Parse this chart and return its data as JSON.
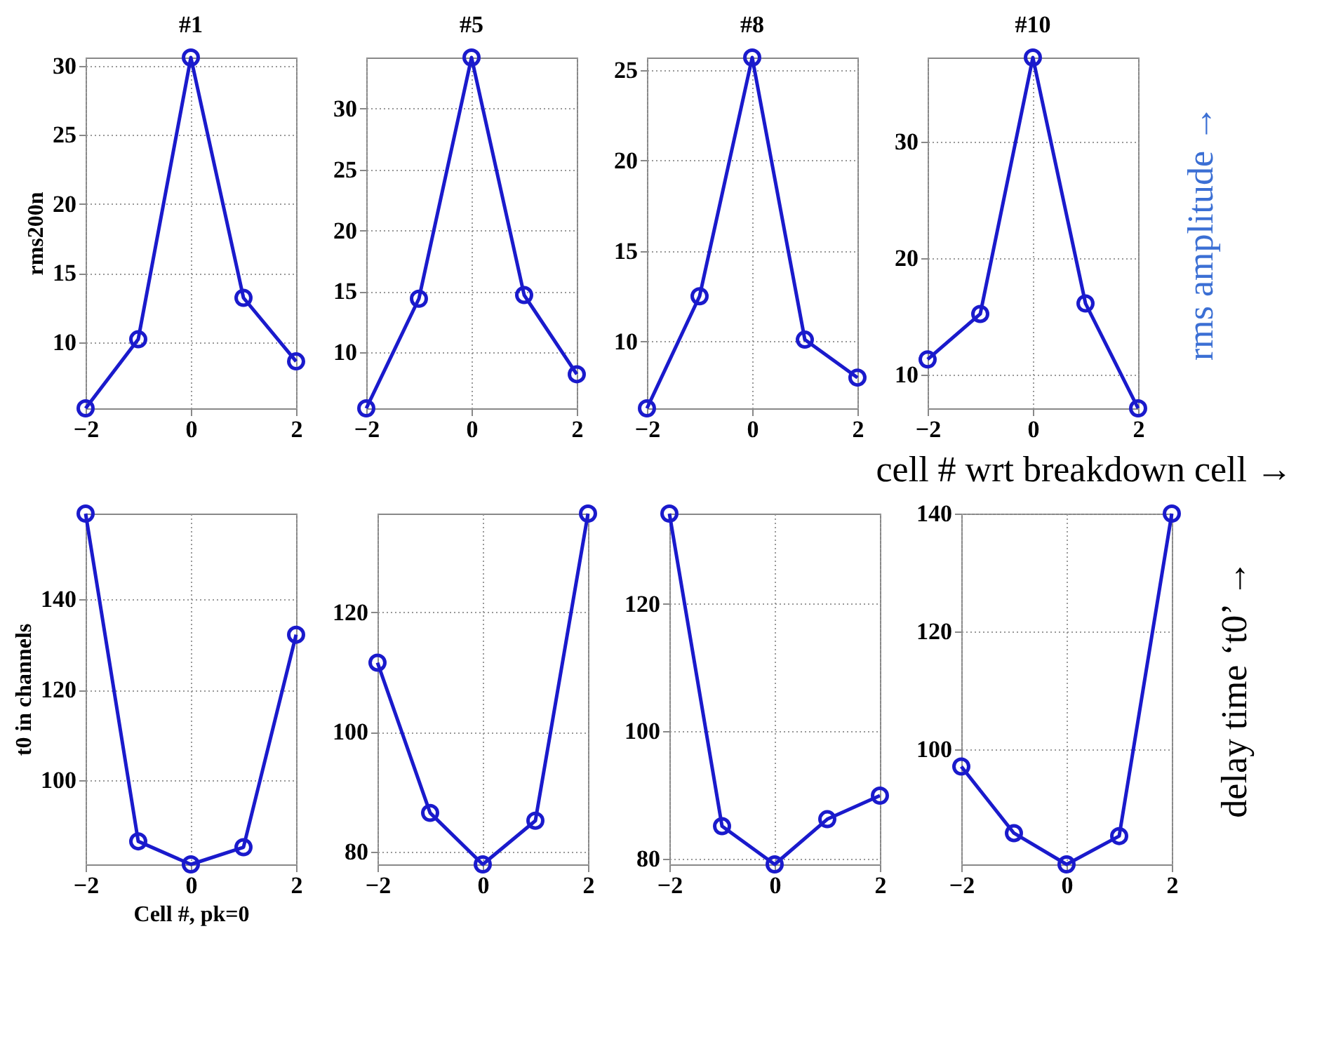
{
  "chart_data": [
    {
      "type": "line",
      "title": "#1",
      "ylabel": "rms200n",
      "x": [
        -2,
        -1,
        0,
        1,
        2
      ],
      "series": [
        {
          "color": "#1a1acc",
          "values": [
            5.2,
            10.2,
            30.6,
            13.2,
            8.6
          ]
        }
      ],
      "xlim": [
        -2,
        2
      ],
      "xticks": [
        -2,
        0,
        2
      ],
      "ylim": [
        5.2,
        30.6
      ],
      "yticks": [
        10,
        15,
        20,
        25,
        30
      ],
      "grid": true,
      "marker": "circle",
      "line_style": "solid"
    },
    {
      "type": "line",
      "title": "#5",
      "x": [
        -2,
        -1,
        0,
        1,
        2
      ],
      "series": [
        {
          "color": "#1a1acc",
          "values": [
            5.4,
            14.4,
            34.2,
            14.7,
            8.2
          ]
        }
      ],
      "xlim": [
        -2,
        2
      ],
      "xticks": [
        -2,
        0,
        2
      ],
      "ylim": [
        5.4,
        34.2
      ],
      "yticks": [
        10,
        15,
        20,
        25,
        30
      ],
      "grid": true,
      "marker": "circle",
      "line_style": "solid"
    },
    {
      "type": "line",
      "title": "#8",
      "x": [
        -2,
        -1,
        0,
        1,
        2
      ],
      "series": [
        {
          "color": "#1a1acc",
          "values": [
            6.3,
            12.5,
            25.7,
            10.1,
            8.0
          ]
        }
      ],
      "xlim": [
        -2,
        2
      ],
      "xticks": [
        -2,
        0,
        2
      ],
      "ylim": [
        6.3,
        25.7
      ],
      "yticks": [
        10,
        15,
        20,
        25
      ],
      "grid": true,
      "marker": "circle",
      "line_style": "solid"
    },
    {
      "type": "line",
      "title": "#10",
      "x": [
        -2,
        -1,
        0,
        1,
        2
      ],
      "series": [
        {
          "color": "#1a1acc",
          "values": [
            11.3,
            15.2,
            37.2,
            16.1,
            7.1
          ]
        }
      ],
      "xlim": [
        -2,
        2
      ],
      "xticks": [
        -2,
        0,
        2
      ],
      "ylim": [
        7.1,
        37.2
      ],
      "yticks": [
        10,
        20,
        30
      ],
      "grid": true,
      "marker": "circle",
      "line_style": "solid",
      "annotations": [
        "rms amplitude →",
        "cell # wrt breakdown cell →"
      ]
    },
    {
      "type": "line",
      "ylabel": "t0 in channels",
      "xlabel": "Cell #, pk=0",
      "x": [
        -2,
        -1,
        0,
        1,
        2
      ],
      "series": [
        {
          "color": "#1a1acc",
          "values": [
            159,
            86.5,
            81.4,
            85.2,
            132.2
          ]
        }
      ],
      "xlim": [
        -2,
        2
      ],
      "xticks": [
        -2,
        0,
        2
      ],
      "ylim": [
        81.4,
        159
      ],
      "yticks": [
        100,
        120,
        140
      ],
      "grid": true,
      "marker": "circle",
      "line_style": "solid"
    },
    {
      "type": "line",
      "x": [
        -2,
        -1,
        0,
        1,
        2
      ],
      "series": [
        {
          "color": "#1a1acc",
          "values": [
            111.6,
            86.5,
            77.9,
            85.2,
            136.5
          ]
        }
      ],
      "xlim": [
        -2,
        2
      ],
      "xticks": [
        -2,
        0,
        2
      ],
      "ylim": [
        77.9,
        136.5
      ],
      "yticks": [
        80,
        100,
        120
      ],
      "grid": true,
      "marker": "circle",
      "line_style": "solid"
    },
    {
      "type": "line",
      "x": [
        -2,
        -1,
        0,
        1,
        2
      ],
      "series": [
        {
          "color": "#1a1acc",
          "values": [
            134.2,
            85.1,
            79.1,
            86.2,
            89.9
          ]
        }
      ],
      "xlim": [
        -2,
        2
      ],
      "xticks": [
        -2,
        0,
        2
      ],
      "ylim": [
        79.1,
        134.2
      ],
      "yticks": [
        80,
        100,
        120
      ],
      "grid": true,
      "marker": "circle",
      "line_style": "solid"
    },
    {
      "type": "line",
      "x": [
        -2,
        -1,
        0,
        1,
        2
      ],
      "series": [
        {
          "color": "#1a1acc",
          "values": [
            97.1,
            85.8,
            80.5,
            85.3,
            140
          ]
        }
      ],
      "xlim": [
        -2,
        2
      ],
      "xticks": [
        -2,
        0,
        2
      ],
      "ylim": [
        80.5,
        140
      ],
      "yticks": [
        100,
        120,
        140
      ],
      "grid": true,
      "marker": "circle",
      "line_style": "solid",
      "annotations": [
        "delay time ‘t0’ →"
      ]
    }
  ]
}
